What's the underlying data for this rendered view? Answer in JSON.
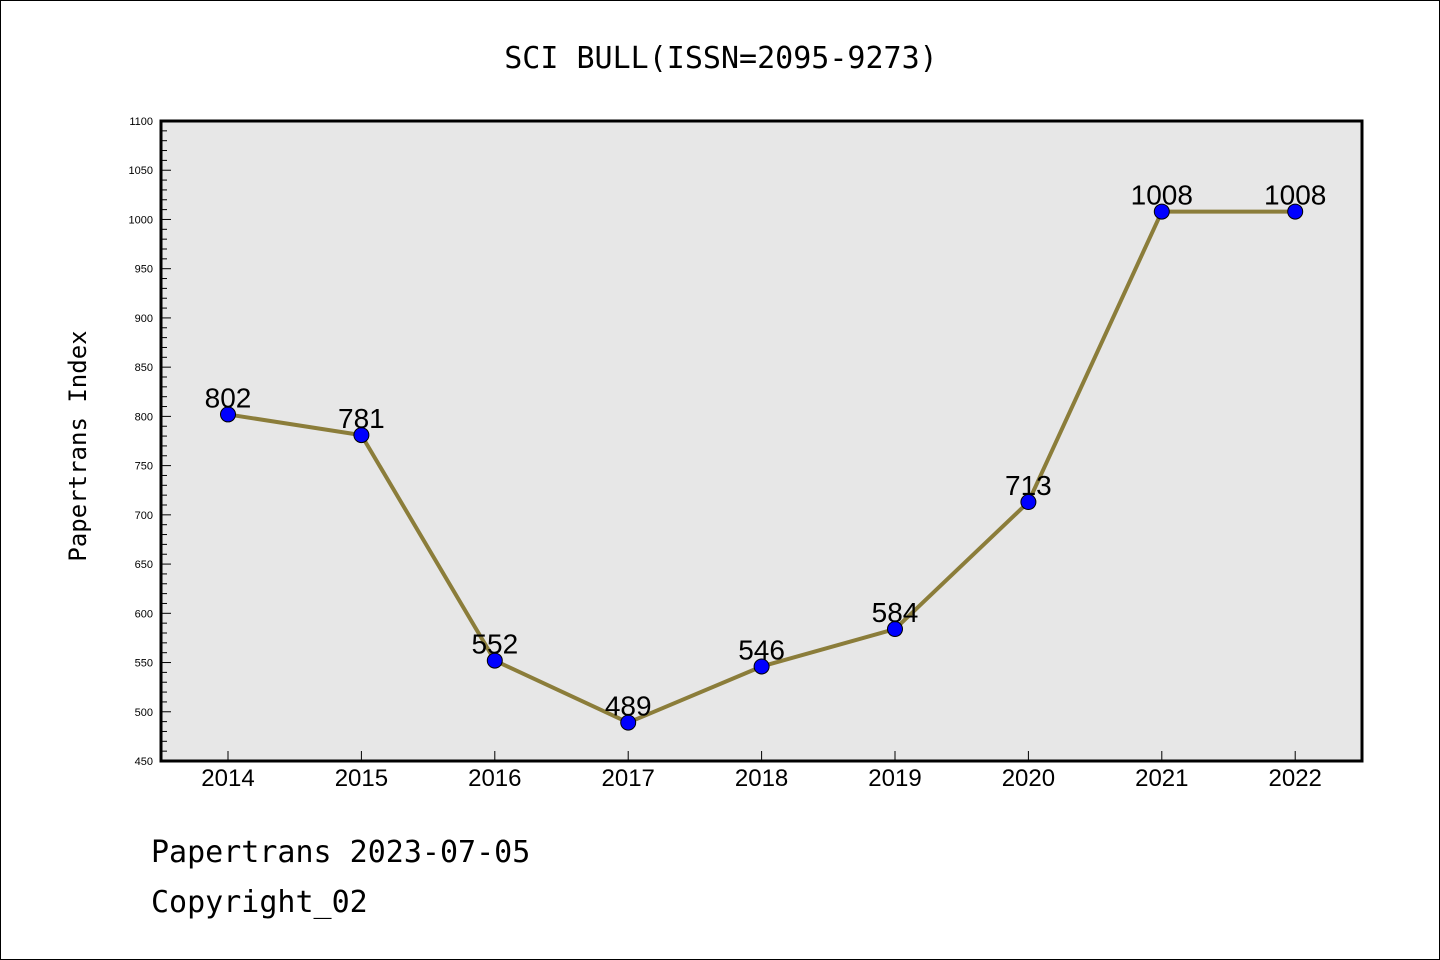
{
  "chart_data": {
    "type": "line",
    "title": "SCI BULL(ISSN=2095-9273)",
    "xlabel": "",
    "ylabel": "Papertrans Index",
    "categories": [
      "2014",
      "2015",
      "2016",
      "2017",
      "2018",
      "2019",
      "2020",
      "2021",
      "2022"
    ],
    "values": [
      802,
      781,
      552,
      489,
      546,
      584,
      713,
      1008,
      1008
    ],
    "data_labels": [
      "802",
      "781",
      "552",
      "489",
      "546",
      "584",
      "713",
      "1008",
      "1008"
    ],
    "ylim": [
      450,
      1100
    ],
    "yticks": [
      "450",
      "500",
      "550",
      "600",
      "650",
      "700",
      "750",
      "800",
      "850",
      "900",
      "950",
      "1000",
      "1050",
      "1100"
    ],
    "grid": false,
    "colors": {
      "line": "#8B7D3A",
      "marker": "#0000FF",
      "plot_background": "#E7E7E7"
    }
  },
  "footer": {
    "line1": "Papertrans 2023-07-05",
    "line2": "Copyright_02"
  }
}
